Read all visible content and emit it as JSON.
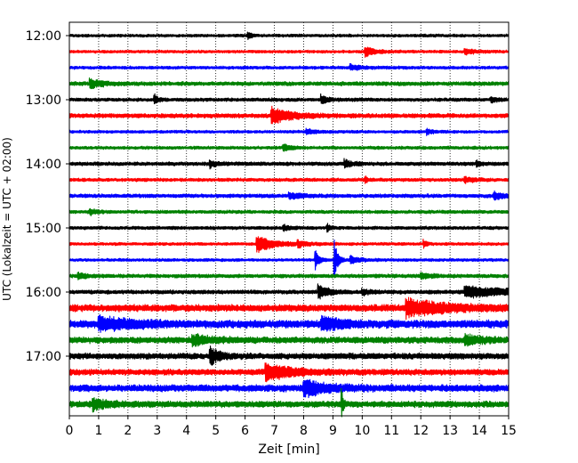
{
  "chart_data": {
    "type": "line",
    "chart_kind": "helicorder seismogram",
    "xlabel": "Zeit  [min]",
    "ylabel": "UTC (Lokalzeit = UTC + 02:00)",
    "xlim": [
      0,
      15
    ],
    "x_ticks": [
      "0",
      "1",
      "2",
      "3",
      "4",
      "5",
      "6",
      "7",
      "8",
      "9",
      "10",
      "11",
      "12",
      "13",
      "14",
      "15"
    ],
    "y_ticks": [
      "12:00",
      "13:00",
      "14:00",
      "15:00",
      "16:00",
      "17:00"
    ],
    "grid": "vertical dotted lines at each minute",
    "line_color_cycle": [
      "#000000",
      "#ff0000",
      "#0000ff",
      "#008000"
    ],
    "rows_per_hour": 4,
    "traces": [
      {
        "row": 0,
        "color": "#000000",
        "base_noise": 1.5,
        "events": [
          {
            "t": 6.1,
            "amp": 4,
            "dur": 0.1
          }
        ]
      },
      {
        "row": 1,
        "color": "#ff0000",
        "base_noise": 1.5,
        "events": [
          {
            "t": 10.1,
            "amp": 6,
            "dur": 0.3
          },
          {
            "t": 13.5,
            "amp": 3,
            "dur": 0.3
          }
        ]
      },
      {
        "row": 2,
        "color": "#0000ff",
        "base_noise": 1.6,
        "events": [
          {
            "t": 9.6,
            "amp": 3,
            "dur": 0.3
          }
        ]
      },
      {
        "row": 3,
        "color": "#008000",
        "base_noise": 2.0,
        "events": [
          {
            "t": 0.7,
            "amp": 5,
            "dur": 0.4
          }
        ]
      },
      {
        "row": 4,
        "color": "#000000",
        "base_noise": 1.8,
        "events": [
          {
            "t": 2.9,
            "amp": 6,
            "dur": 0.1
          },
          {
            "t": 8.6,
            "amp": 5,
            "dur": 0.2
          },
          {
            "t": 14.4,
            "amp": 3,
            "dur": 0.2
          }
        ]
      },
      {
        "row": 5,
        "color": "#ff0000",
        "base_noise": 2.2,
        "events": [
          {
            "t": 6.9,
            "amp": 9,
            "dur": 0.6
          }
        ]
      },
      {
        "row": 6,
        "color": "#0000ff",
        "base_noise": 1.5,
        "events": [
          {
            "t": 8.1,
            "amp": 3,
            "dur": 0.3
          },
          {
            "t": 12.2,
            "amp": 3,
            "dur": 0.2
          }
        ]
      },
      {
        "row": 7,
        "color": "#008000",
        "base_noise": 1.6,
        "events": [
          {
            "t": 7.3,
            "amp": 4,
            "dur": 0.2
          }
        ]
      },
      {
        "row": 8,
        "color": "#000000",
        "base_noise": 1.9,
        "events": [
          {
            "t": 4.8,
            "amp": 4,
            "dur": 0.2
          },
          {
            "t": 9.4,
            "amp": 4,
            "dur": 0.2
          },
          {
            "t": 13.9,
            "amp": 3,
            "dur": 0.1
          }
        ]
      },
      {
        "row": 9,
        "color": "#ff0000",
        "base_noise": 1.7,
        "events": [
          {
            "t": 10.1,
            "amp": 3,
            "dur": 0.1
          },
          {
            "t": 13.5,
            "amp": 3,
            "dur": 0.3
          }
        ]
      },
      {
        "row": 10,
        "color": "#0000ff",
        "base_noise": 1.9,
        "events": [
          {
            "t": 7.5,
            "amp": 3,
            "dur": 0.4
          },
          {
            "t": 14.5,
            "amp": 4,
            "dur": 0.3
          }
        ]
      },
      {
        "row": 11,
        "color": "#008000",
        "base_noise": 1.7,
        "events": [
          {
            "t": 0.7,
            "amp": 3,
            "dur": 0.2
          }
        ]
      },
      {
        "row": 12,
        "color": "#000000",
        "base_noise": 1.7,
        "events": [
          {
            "t": 7.3,
            "amp": 3,
            "dur": 0.2
          },
          {
            "t": 8.8,
            "amp": 4,
            "dur": 0.1
          }
        ]
      },
      {
        "row": 13,
        "color": "#ff0000",
        "base_noise": 1.5,
        "events": [
          {
            "t": 6.4,
            "amp": 10,
            "dur": 0.5
          },
          {
            "t": 7.8,
            "amp": 3,
            "dur": 0.3
          },
          {
            "t": 12.1,
            "amp": 4,
            "dur": 0.1
          }
        ]
      },
      {
        "row": 14,
        "color": "#0000ff",
        "base_noise": 1.5,
        "events": [
          {
            "t": 8.4,
            "amp": 12,
            "dur": 0.1
          },
          {
            "t": 9.05,
            "amp": 22,
            "dur": 0.1
          },
          {
            "t": 9.6,
            "amp": 4,
            "dur": 0.3
          }
        ]
      },
      {
        "row": 15,
        "color": "#008000",
        "base_noise": 1.9,
        "events": [
          {
            "t": 0.3,
            "amp": 4,
            "dur": 0.2
          },
          {
            "t": 12.0,
            "amp": 3,
            "dur": 0.3
          }
        ]
      },
      {
        "row": 16,
        "color": "#000000",
        "base_noise": 2.0,
        "events": [
          {
            "t": 8.5,
            "amp": 8,
            "dur": 0.3
          },
          {
            "t": 10.0,
            "amp": 3,
            "dur": 0.2
          },
          {
            "t": 13.5,
            "amp": 6,
            "dur": 1.5
          }
        ]
      },
      {
        "row": 17,
        "color": "#ff0000",
        "base_noise": 3.5,
        "events": [
          {
            "t": 11.5,
            "amp": 9,
            "dur": 1.2
          }
        ]
      },
      {
        "row": 18,
        "color": "#0000ff",
        "base_noise": 4.0,
        "events": [
          {
            "t": 1.0,
            "amp": 7,
            "dur": 1.0
          },
          {
            "t": 8.6,
            "amp": 7,
            "dur": 0.6
          }
        ]
      },
      {
        "row": 19,
        "color": "#008000",
        "base_noise": 3.2,
        "events": [
          {
            "t": 4.2,
            "amp": 5,
            "dur": 0.6
          },
          {
            "t": 13.5,
            "amp": 4,
            "dur": 0.6
          }
        ]
      },
      {
        "row": 20,
        "color": "#000000",
        "base_noise": 3.0,
        "events": [
          {
            "t": 4.8,
            "amp": 9,
            "dur": 0.3
          }
        ]
      },
      {
        "row": 21,
        "color": "#ff0000",
        "base_noise": 3.0,
        "events": [
          {
            "t": 6.7,
            "amp": 9,
            "dur": 0.8
          }
        ]
      },
      {
        "row": 22,
        "color": "#0000ff",
        "base_noise": 3.5,
        "events": [
          {
            "t": 8.0,
            "amp": 9,
            "dur": 0.7
          }
        ]
      },
      {
        "row": 23,
        "color": "#008000",
        "base_noise": 3.2,
        "events": [
          {
            "t": 0.8,
            "amp": 6,
            "dur": 0.4
          },
          {
            "t": 9.3,
            "amp": 16,
            "dur": 0.05
          }
        ]
      }
    ]
  }
}
